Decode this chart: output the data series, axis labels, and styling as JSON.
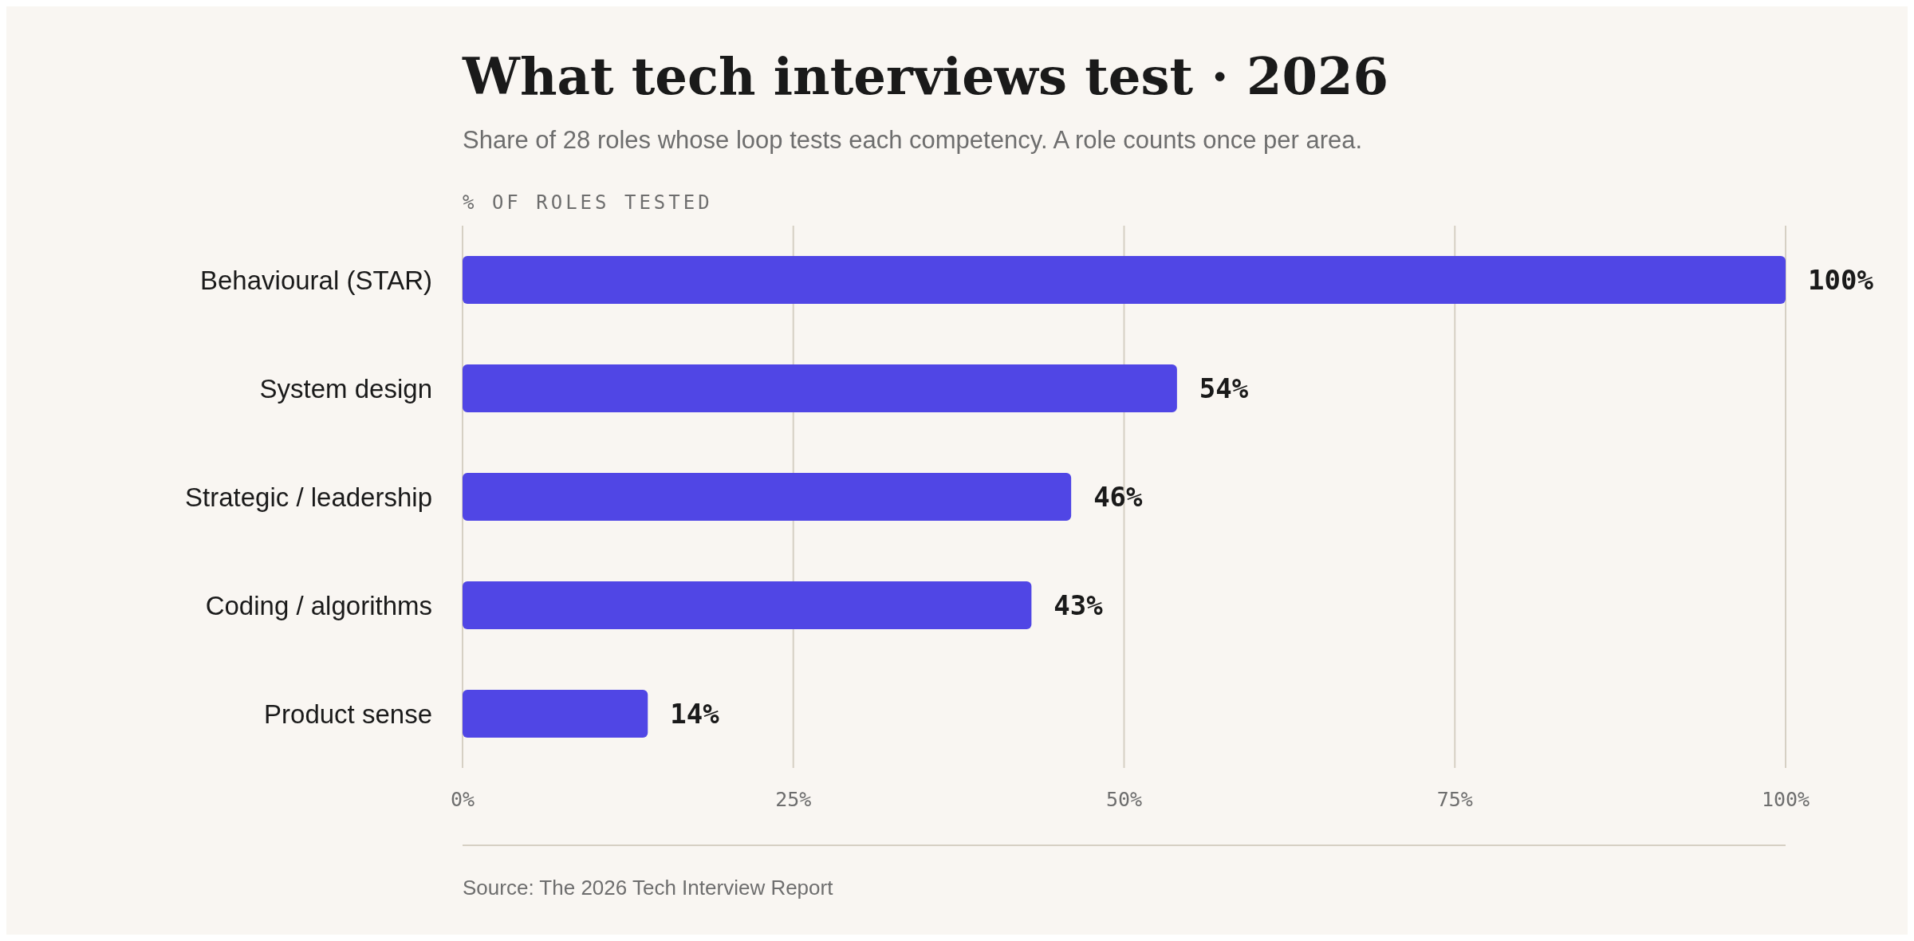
{
  "chart_data": {
    "type": "bar",
    "orientation": "horizontal",
    "title": "What tech interviews test · 2026",
    "subtitle": "Share of 28 roles whose loop tests each competency. A role counts once per area.",
    "xlabel": "% OF ROLES TESTED",
    "categories": [
      "Behavioural (STAR)",
      "System design",
      "Strategic / leadership",
      "Coding / algorithms",
      "Product sense"
    ],
    "values": [
      100,
      54,
      46,
      43,
      14
    ],
    "value_labels": [
      "100%",
      "54%",
      "46%",
      "43%",
      "14%"
    ],
    "color": "#5046e5",
    "xlim": [
      0,
      100
    ],
    "xticks": [
      {
        "value": 0,
        "label": "0%"
      },
      {
        "value": 25,
        "label": "25%"
      },
      {
        "value": 50,
        "label": "50%"
      },
      {
        "value": 75,
        "label": "75%"
      },
      {
        "value": 100,
        "label": "100%"
      }
    ],
    "grid": "x",
    "annotations": [
      "Source: The 2026 Tech Interview Report"
    ]
  }
}
